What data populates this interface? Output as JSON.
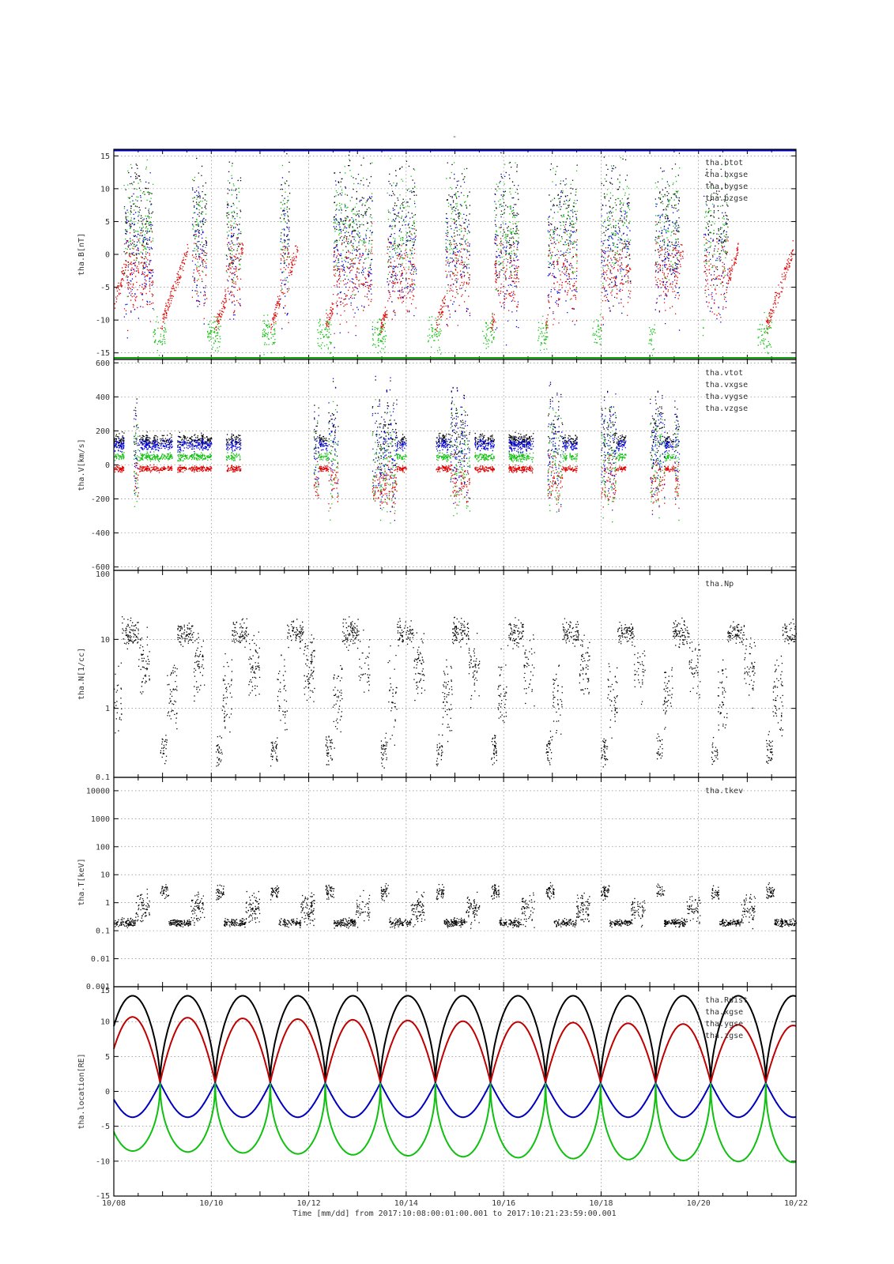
{
  "page_title": "-",
  "footer": {
    "xlabel": "Time [mm/dd]  from 2017:10:08:00:01:00.001  to  2017:10:21:23:59:00.001"
  },
  "chart_data": [
    {
      "type": "scatter",
      "ylabel": "tha.B[nT]",
      "ylim": [
        -16,
        16
      ],
      "yscale": "linear",
      "yticks": [
        -15,
        -10,
        -5,
        0,
        5,
        10,
        15
      ],
      "ytick_labels": [
        "-15",
        "-10",
        "-5",
        "0",
        "5",
        "10",
        "15"
      ],
      "legend_placement": "top-right",
      "series": [
        {
          "name": "tha.btot",
          "color": "#000000"
        },
        {
          "name": "tha.bxgse",
          "color": "#e00000"
        },
        {
          "name": "tha.bygse",
          "color": "#10c010"
        },
        {
          "name": "tha.bzgse",
          "color": "#0000e0"
        }
      ]
    },
    {
      "type": "scatter",
      "ylabel": "tha.V[km/s]",
      "ylim": [
        -620,
        620
      ],
      "yscale": "linear",
      "yticks": [
        -600,
        -400,
        -200,
        0,
        200,
        400,
        600
      ],
      "ytick_labels": [
        "-600",
        "-400",
        "-200",
        "0",
        "200",
        "400",
        "600"
      ],
      "legend_placement": "top-right",
      "series": [
        {
          "name": "tha.vtot",
          "color": "#000000"
        },
        {
          "name": "tha.vxgse",
          "color": "#e00000"
        },
        {
          "name": "tha.vygse",
          "color": "#10c010"
        },
        {
          "name": "tha.vzgse",
          "color": "#0000e0"
        }
      ]
    },
    {
      "type": "scatter",
      "ylabel": "tha.N[1/cc]",
      "ylim": [
        0.1,
        100
      ],
      "yscale": "log",
      "yticks": [
        0.1,
        1,
        10,
        100
      ],
      "ytick_labels": [
        "0.1",
        "1",
        "10",
        "100"
      ],
      "legend_placement": "top-right",
      "series": [
        {
          "name": "tha.Np",
          "color": "#000000"
        }
      ]
    },
    {
      "type": "scatter",
      "ylabel": "tha.T[keV]",
      "ylim": [
        0.001,
        30000
      ],
      "yscale": "log",
      "yticks": [
        0.001,
        0.01,
        0.1,
        1,
        10,
        100,
        1000,
        10000
      ],
      "ytick_labels": [
        "0.001",
        "0.01",
        "0.1",
        "1",
        "10",
        "100",
        "1000",
        "10000"
      ],
      "legend_placement": "top-right",
      "series": [
        {
          "name": "tha.tkev",
          "color": "#000000"
        }
      ]
    },
    {
      "type": "line",
      "ylabel": "tha.location[RE]",
      "ylim": [
        -15,
        15
      ],
      "yscale": "linear",
      "yticks": [
        -15,
        -10,
        -5,
        0,
        5,
        10,
        15
      ],
      "ytick_labels": [
        "-15",
        "-10",
        "-5",
        "0",
        "5",
        "10",
        "15"
      ],
      "legend_placement": "top-right",
      "series": [
        {
          "name": "tha.Rdist",
          "color": "#000000"
        },
        {
          "name": "tha.xgse",
          "color": "#c00000"
        },
        {
          "name": "tha.ygse",
          "color": "#0000c0"
        },
        {
          "name": "tha.zgse",
          "color": "#10c010"
        }
      ]
    }
  ],
  "x_axis": {
    "range": [
      "10/08",
      "10/22"
    ],
    "ticks": [
      "10/08",
      "10/10",
      "10/12",
      "10/14",
      "10/16",
      "10/18",
      "10/20",
      "10/22"
    ],
    "grid": true
  }
}
